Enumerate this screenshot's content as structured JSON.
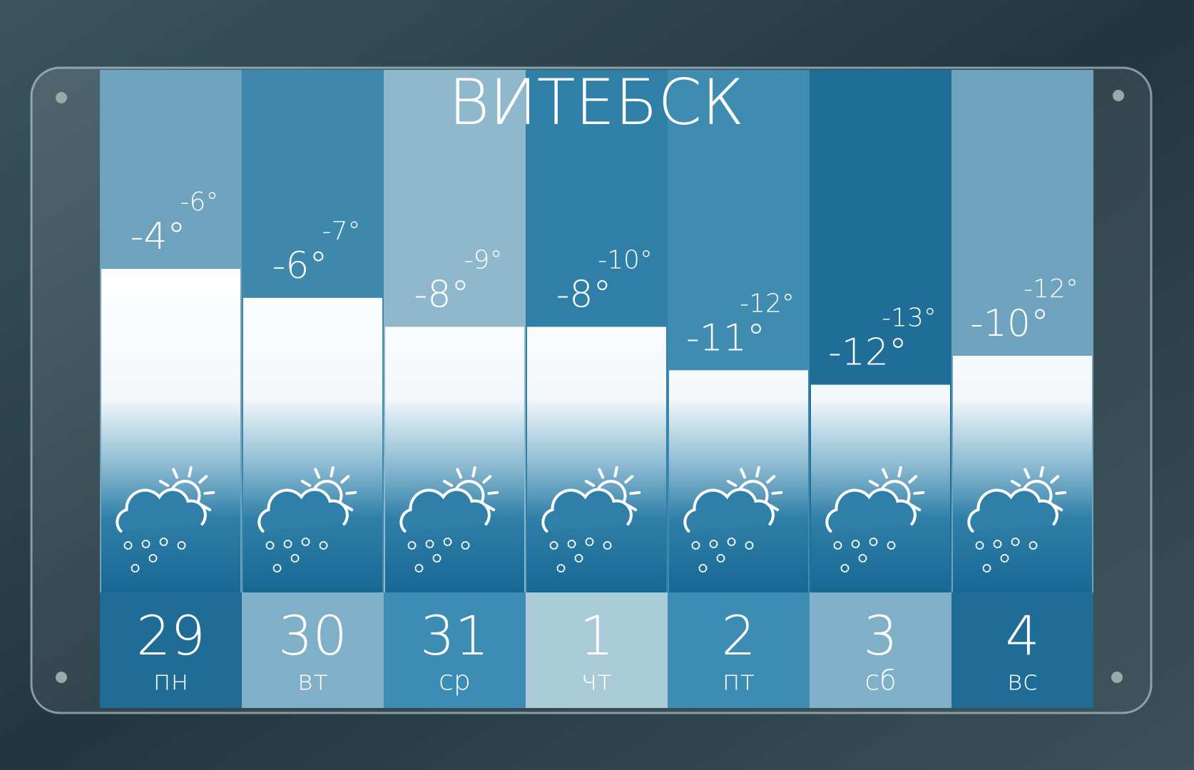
{
  "chart_data": {
    "type": "bar",
    "title": "ВИТЕБСК",
    "categories": [
      "29",
      "30",
      "31",
      "1",
      "2",
      "3",
      "4"
    ],
    "weekdays": [
      "пн",
      "вт",
      "ср",
      "чт",
      "пт",
      "сб",
      "вс"
    ],
    "series": [
      {
        "values": [
          -4,
          -6,
          -8,
          -8,
          -11,
          -12,
          -10
        ],
        "value_labels": [
          "-4°",
          "-6°",
          "-8°",
          "-8°",
          "-11°",
          "-12°",
          "-10°"
        ]
      },
      {
        "values": [
          -6,
          -7,
          -9,
          -10,
          -12,
          -13,
          -12
        ],
        "value_labels": [
          "-6°",
          "-7°",
          "-9°",
          "-10°",
          "-12°",
          "-13°",
          "-12°"
        ]
      }
    ]
  }
}
